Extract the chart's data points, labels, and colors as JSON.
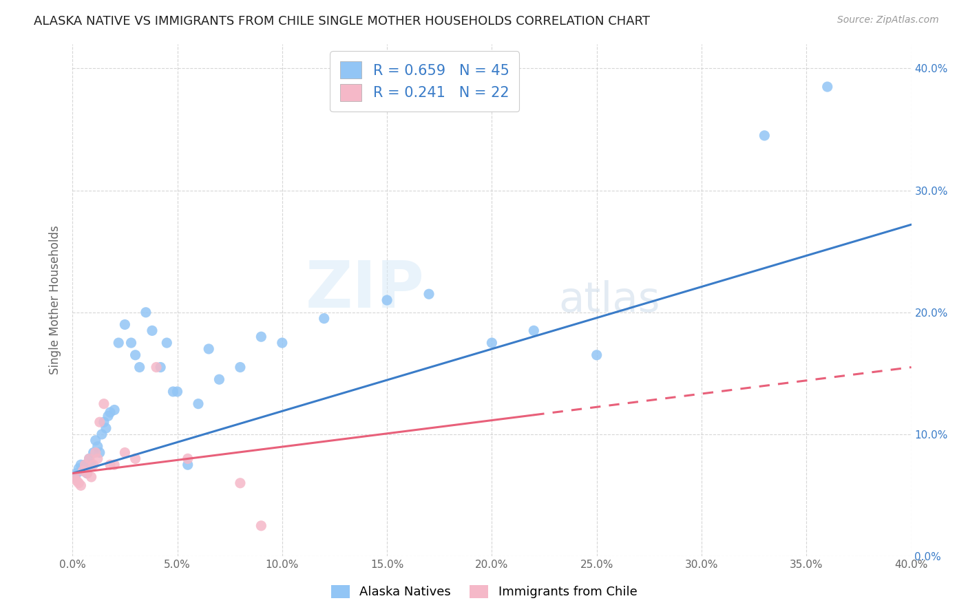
{
  "title": "ALASKA NATIVE VS IMMIGRANTS FROM CHILE SINGLE MOTHER HOUSEHOLDS CORRELATION CHART",
  "source": "Source: ZipAtlas.com",
  "xlabel": "",
  "ylabel": "Single Mother Households",
  "xlim": [
    0.0,
    0.4
  ],
  "ylim": [
    0.0,
    0.42
  ],
  "xticks": [
    0.0,
    0.05,
    0.1,
    0.15,
    0.2,
    0.25,
    0.3,
    0.35,
    0.4
  ],
  "yticks": [
    0.0,
    0.1,
    0.2,
    0.3,
    0.4
  ],
  "alaska_R": 0.659,
  "alaska_N": 45,
  "chile_R": 0.241,
  "chile_N": 22,
  "alaska_color": "#92c5f5",
  "chile_color": "#f5b8c8",
  "alaska_line_color": "#3a7cc8",
  "chile_line_color": "#e8607a",
  "legend_label_alaska": "Alaska Natives",
  "legend_label_chile": "Immigrants from Chile",
  "watermark_zip": "ZIP",
  "watermark_atlas": "atlas",
  "alaska_x": [
    0.001,
    0.002,
    0.003,
    0.004,
    0.005,
    0.006,
    0.007,
    0.008,
    0.009,
    0.01,
    0.011,
    0.012,
    0.013,
    0.014,
    0.015,
    0.016,
    0.017,
    0.018,
    0.02,
    0.022,
    0.025,
    0.028,
    0.03,
    0.032,
    0.035,
    0.038,
    0.042,
    0.045,
    0.048,
    0.05,
    0.055,
    0.06,
    0.065,
    0.07,
    0.08,
    0.09,
    0.1,
    0.12,
    0.15,
    0.17,
    0.2,
    0.22,
    0.25,
    0.33,
    0.36
  ],
  "alaska_y": [
    0.065,
    0.068,
    0.072,
    0.075,
    0.07,
    0.075,
    0.068,
    0.08,
    0.075,
    0.085,
    0.095,
    0.09,
    0.085,
    0.1,
    0.11,
    0.105,
    0.115,
    0.118,
    0.12,
    0.175,
    0.19,
    0.175,
    0.165,
    0.155,
    0.2,
    0.185,
    0.155,
    0.175,
    0.135,
    0.135,
    0.075,
    0.125,
    0.17,
    0.145,
    0.155,
    0.18,
    0.175,
    0.195,
    0.21,
    0.215,
    0.175,
    0.185,
    0.165,
    0.345,
    0.385
  ],
  "chile_x": [
    0.001,
    0.002,
    0.003,
    0.004,
    0.005,
    0.006,
    0.007,
    0.008,
    0.009,
    0.01,
    0.011,
    0.012,
    0.013,
    0.015,
    0.018,
    0.02,
    0.025,
    0.03,
    0.04,
    0.055,
    0.08,
    0.09
  ],
  "chile_y": [
    0.065,
    0.062,
    0.06,
    0.058,
    0.07,
    0.075,
    0.068,
    0.08,
    0.065,
    0.075,
    0.085,
    0.08,
    0.11,
    0.125,
    0.075,
    0.075,
    0.085,
    0.08,
    0.155,
    0.08,
    0.06,
    0.025
  ],
  "alaska_line_x0": 0.0,
  "alaska_line_y0": 0.068,
  "alaska_line_x1": 0.4,
  "alaska_line_y1": 0.272,
  "chile_line_x0": 0.0,
  "chile_line_y0": 0.068,
  "chile_line_x1": 0.4,
  "chile_line_y1": 0.155
}
